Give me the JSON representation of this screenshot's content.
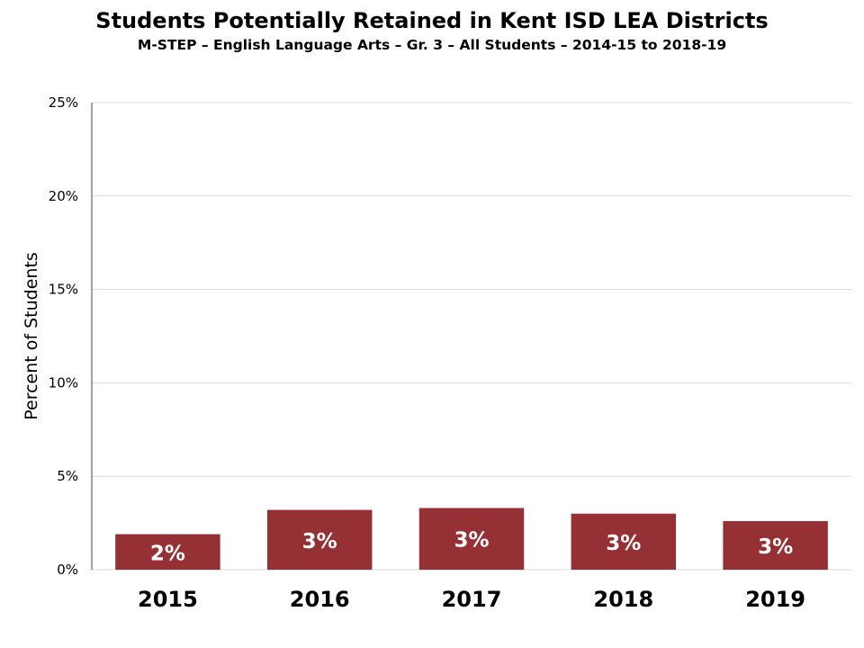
{
  "chart_data": {
    "type": "bar",
    "title": "Students Potentially Retained in Kent ISD LEA Districts",
    "subtitle": "M-STEP – English Language Arts – Gr. 3 – All Students – 2014-15 to 2018-19",
    "ylabel": "Percent of Students",
    "xlabel": "",
    "categories": [
      "2015",
      "2016",
      "2017",
      "2018",
      "2019"
    ],
    "values": [
      1.9,
      3.2,
      3.3,
      3.0,
      2.6
    ],
    "data_labels": [
      "2%",
      "3%",
      "3%",
      "3%",
      "3%"
    ],
    "ylim": [
      0,
      25
    ],
    "y_ticks": [
      0,
      5,
      10,
      15,
      20,
      25
    ],
    "y_tick_labels": [
      "0%",
      "5%",
      "10%",
      "15%",
      "20%",
      "25%"
    ],
    "grid": true,
    "legend": "none",
    "colors": {
      "bar": "#953135",
      "grid": "#d9d9d9",
      "axis": "#1f4e79"
    }
  }
}
